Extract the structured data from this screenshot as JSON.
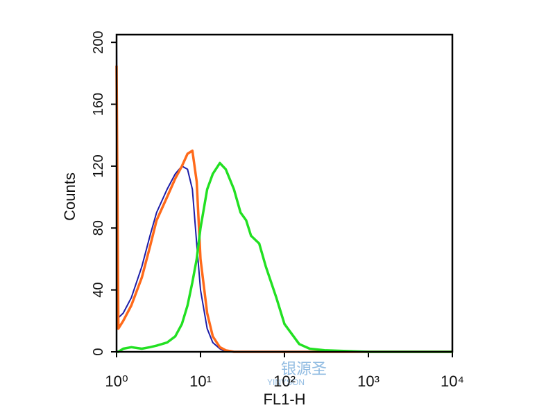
{
  "chart_data": {
    "type": "line",
    "x_label": "FL1-H",
    "y_label": "Counts",
    "xscale": "log",
    "xlim": [
      1,
      10000
    ],
    "xticks": [
      {
        "value": 1,
        "label": "10⁰"
      },
      {
        "value": 10,
        "label": "10¹"
      },
      {
        "value": 100,
        "label": "10²"
      },
      {
        "value": 1000,
        "label": "10³"
      },
      {
        "value": 10000,
        "label": "10⁴"
      }
    ],
    "ylim": [
      0,
      205
    ],
    "yticks": [
      0,
      40,
      80,
      120,
      160,
      200
    ],
    "x": [
      1,
      1.05,
      1.2,
      1.5,
      2,
      2.5,
      3,
      4,
      5,
      6,
      7,
      8,
      9,
      10,
      12,
      14,
      17,
      20,
      25,
      30,
      35,
      40,
      50,
      60,
      80,
      100,
      150,
      200,
      300,
      1000,
      10000
    ],
    "series": [
      {
        "color": "#1c1ca8",
        "values": [
          200,
          22,
          25,
          35,
          55,
          75,
          90,
          105,
          115,
          120,
          118,
          105,
          70,
          40,
          15,
          6,
          2,
          0,
          0,
          0,
          0,
          0,
          0,
          0,
          0,
          0,
          0,
          0,
          0,
          0,
          0
        ]
      },
      {
        "color": "#ff6a1a",
        "values": [
          185,
          15,
          20,
          30,
          48,
          68,
          85,
          100,
          112,
          120,
          128,
          130,
          110,
          60,
          25,
          10,
          3,
          1,
          0,
          0,
          0,
          0,
          0,
          0,
          0,
          0,
          0,
          0,
          0,
          0,
          0
        ]
      },
      {
        "color": "#22e022",
        "values": [
          0,
          0,
          2,
          3,
          2,
          3,
          4,
          6,
          10,
          18,
          30,
          45,
          60,
          80,
          105,
          115,
          122,
          118,
          105,
          90,
          85,
          75,
          70,
          55,
          35,
          18,
          5,
          2,
          1,
          0,
          0
        ]
      }
    ],
    "watermark": [
      "银源圣",
      "YINYSON"
    ]
  }
}
